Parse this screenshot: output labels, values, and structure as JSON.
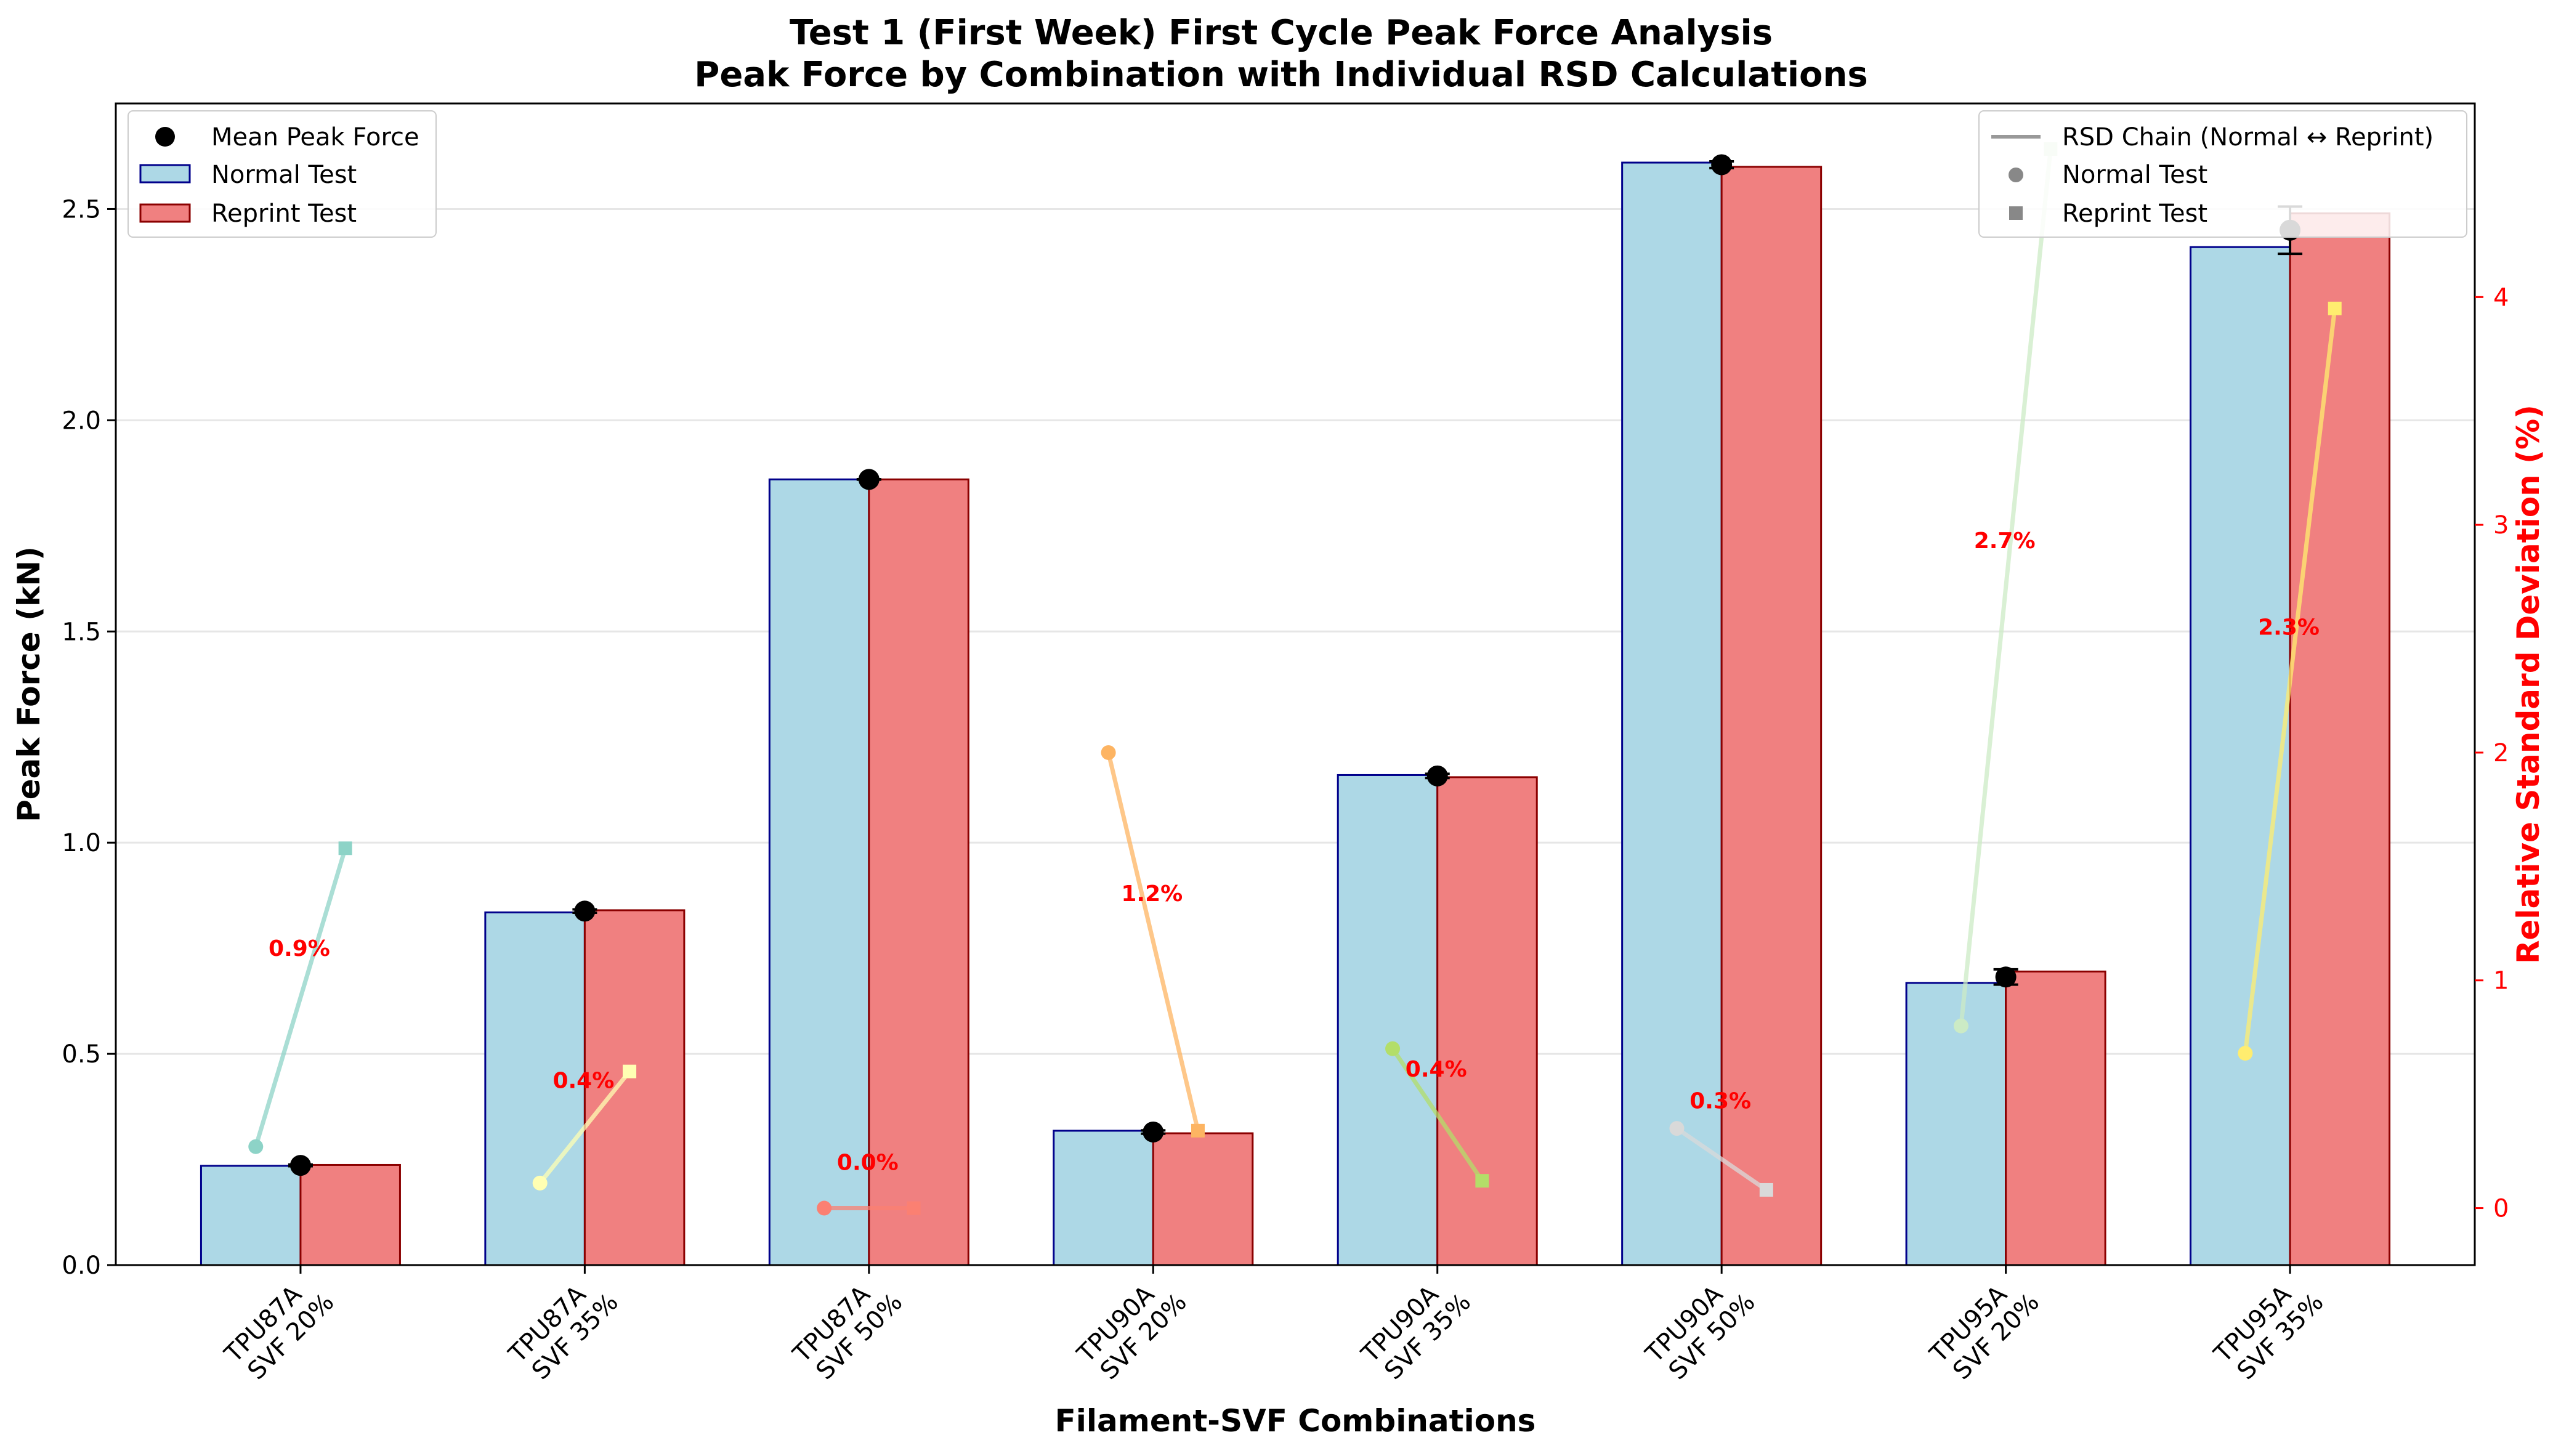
{
  "chart_data": {
    "type": "bar",
    "title": "Test 1 (First Week) First Cycle Peak Force Analysis",
    "subtitle": "Peak Force by Combination with Individual RSD Calculations",
    "xlabel": "Filament-SVF Combinations",
    "ylabel": "Peak Force (kN)",
    "y2label": "Relative Standard Deviation (%)",
    "ylim": [
      0,
      2.75
    ],
    "y2lim": [
      -0.25,
      4.85
    ],
    "yticks": [
      "0.0",
      "0.5",
      "1.0",
      "1.5",
      "2.0",
      "2.5"
    ],
    "y2ticks": [
      "0",
      "1",
      "2",
      "3",
      "4"
    ],
    "grid": "horizontal",
    "categories": [
      [
        "TPU87A",
        "SVF 20%"
      ],
      [
        "TPU87A",
        "SVF 35%"
      ],
      [
        "TPU87A",
        "SVF 50%"
      ],
      [
        "TPU90A",
        "SVF 20%"
      ],
      [
        "TPU90A",
        "SVF 35%"
      ],
      [
        "TPU90A",
        "SVF 50%"
      ],
      [
        "TPU95A",
        "SVF 20%"
      ],
      [
        "TPU95A",
        "SVF 35%"
      ]
    ],
    "series": [
      {
        "name": "Normal Test",
        "values": [
          0.235,
          0.835,
          1.86,
          0.318,
          1.16,
          2.61,
          0.668,
          2.41
        ],
        "color": "#add8e6",
        "edge": "#00008b"
      },
      {
        "name": "Reprint Test",
        "values": [
          0.237,
          0.84,
          1.86,
          0.312,
          1.155,
          2.6,
          0.695,
          2.49
        ],
        "color": "#f08080",
        "edge": "#8b0000"
      }
    ],
    "mean_peak_force": {
      "name": "Mean Peak Force",
      "values": [
        0.236,
        0.838,
        1.86,
        0.315,
        1.158,
        2.605,
        0.682,
        2.45
      ],
      "error": [
        0.002,
        0.004,
        0.0005,
        0.004,
        0.005,
        0.008,
        0.018,
        0.056
      ]
    },
    "rsd_chain": {
      "name": "RSD Chain (Normal ↔ Reprint)",
      "normal_marker": "Normal Test",
      "reprint_marker": "Reprint Test",
      "normal": [
        0.27,
        0.11,
        0.0,
        2.0,
        0.7,
        0.35,
        0.8,
        0.68
      ],
      "reprint": [
        1.58,
        0.6,
        0.0,
        0.34,
        0.12,
        0.08,
        4.65,
        3.95
      ],
      "labels": [
        "0.9%",
        "0.4%",
        "0.0%",
        "1.2%",
        "0.4%",
        "0.3%",
        "2.7%",
        "2.3%"
      ],
      "label_y": [
        1.14,
        0.56,
        0.2,
        1.38,
        0.61,
        0.47,
        2.93,
        2.55
      ],
      "colors": [
        "#8dd3c7",
        "#ffffb3",
        "#fb8072",
        "#fdb462",
        "#b3de69",
        "#d9d9d9",
        "#ccebc5",
        "#ffed6f"
      ]
    },
    "legend_left": [
      "Mean Peak Force",
      "Normal Test",
      "Reprint Test"
    ],
    "legend_right": [
      "RSD Chain (Normal ↔ Reprint)",
      "Normal Test",
      "Reprint Test"
    ]
  }
}
